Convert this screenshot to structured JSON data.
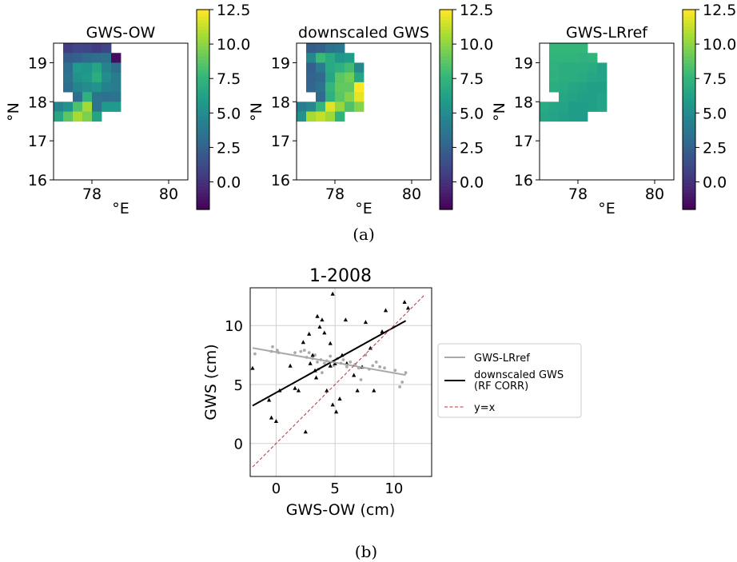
{
  "heatmaps": {
    "xlabel": "°E",
    "ylabel": "°N",
    "x_ticks": [
      78,
      80
    ],
    "y_ticks": [
      16,
      17,
      18,
      19
    ],
    "colorbar_ticks": [
      0.0,
      2.5,
      5.0,
      7.5,
      10.0,
      12.5
    ],
    "colorbar_tick_labels": [
      "0.0",
      "2.5",
      "5.0",
      "7.5",
      "10.0",
      "12.5"
    ]
  },
  "caption_a": "(a)",
  "caption_b": "(b)",
  "chart_data": [
    {
      "type": "heatmap",
      "title": "GWS-OW",
      "x_range": [
        77.0,
        80.5
      ],
      "y_range": [
        16.0,
        19.5
      ],
      "colormap": "viridis",
      "vmin": -2.0,
      "vmax": 12.5,
      "cell_size_deg": 0.25,
      "rows_top_to_bottom": [
        [
          null,
          0.6,
          1.1,
          1.0,
          0.6,
          1.0,
          null,
          null,
          null,
          null,
          null,
          null,
          null,
          null
        ],
        [
          null,
          2.2,
          2.4,
          3.0,
          3.2,
          3.4,
          -1.5,
          null,
          null,
          null,
          null,
          null,
          null,
          null
        ],
        [
          null,
          3.2,
          5.8,
          5.5,
          6.5,
          4.5,
          3.2,
          null,
          null,
          null,
          null,
          null,
          null,
          null
        ],
        [
          null,
          3.6,
          5.4,
          5.8,
          7.0,
          5.0,
          4.0,
          null,
          null,
          null,
          null,
          null,
          null,
          null
        ],
        [
          null,
          3.2,
          4.6,
          5.0,
          5.4,
          4.4,
          4.0,
          null,
          null,
          null,
          null,
          null,
          null,
          null
        ],
        [
          null,
          null,
          3.2,
          7.2,
          3.6,
          3.3,
          3.6,
          null,
          null,
          null,
          null,
          null,
          null,
          null
        ],
        [
          4.6,
          5.4,
          8.4,
          10.5,
          3.5,
          5.8,
          5.8,
          null,
          null,
          null,
          null,
          null,
          null,
          null
        ],
        [
          6.6,
          8.8,
          10.6,
          9.6,
          6.4,
          null,
          null,
          null,
          null,
          null,
          null,
          null,
          null,
          null
        ]
      ]
    },
    {
      "type": "heatmap",
      "title": "downscaled GWS",
      "x_range": [
        77.0,
        80.5
      ],
      "y_range": [
        16.0,
        19.5
      ],
      "colormap": "viridis",
      "vmin": -2.0,
      "vmax": 12.5,
      "cell_size_deg": 0.25,
      "rows_top_to_bottom": [
        [
          null,
          2.2,
          2.5,
          3.4,
          3.8,
          null,
          null,
          null,
          null,
          null,
          null,
          null,
          null,
          null
        ],
        [
          null,
          4.8,
          7.8,
          6.8,
          5.6,
          6.0,
          null,
          null,
          null,
          null,
          null,
          null,
          null,
          null
        ],
        [
          null,
          2.4,
          4.0,
          6.8,
          7.2,
          8.0,
          4.8,
          null,
          null,
          null,
          null,
          null,
          null,
          null
        ],
        [
          null,
          2.6,
          3.0,
          6.6,
          8.8,
          9.4,
          6.6,
          null,
          null,
          null,
          null,
          null,
          null,
          null
        ],
        [
          null,
          2.8,
          3.6,
          7.6,
          9.0,
          9.0,
          12.5,
          null,
          null,
          null,
          null,
          null,
          null,
          null
        ],
        [
          null,
          null,
          3.0,
          7.2,
          8.8,
          9.8,
          12.0,
          null,
          null,
          null,
          null,
          null,
          null,
          null
        ],
        [
          4.2,
          4.8,
          7.6,
          11.8,
          10.2,
          8.4,
          9.8,
          null,
          null,
          null,
          null,
          null,
          null,
          null
        ],
        [
          5.4,
          10.6,
          11.2,
          10.4,
          7.4,
          null,
          null,
          null,
          null,
          null,
          null,
          null,
          null,
          null
        ]
      ]
    },
    {
      "type": "heatmap",
      "title": "GWS-LRref",
      "x_range": [
        77.0,
        80.5
      ],
      "y_range": [
        16.0,
        19.5
      ],
      "colormap": "viridis",
      "vmin": -2.0,
      "vmax": 12.5,
      "cell_size_deg": 0.25,
      "rows_top_to_bottom": [
        [
          null,
          7.6,
          7.6,
          7.6,
          7.6,
          null,
          null,
          null,
          null,
          null,
          null,
          null,
          null,
          null
        ],
        [
          null,
          7.4,
          7.4,
          7.4,
          7.2,
          7.4,
          null,
          null,
          null,
          null,
          null,
          null,
          null,
          null
        ],
        [
          null,
          7.2,
          7.0,
          7.0,
          7.0,
          6.8,
          6.4,
          null,
          null,
          null,
          null,
          null,
          null,
          null
        ],
        [
          null,
          7.2,
          7.0,
          7.0,
          6.8,
          6.6,
          6.4,
          null,
          null,
          null,
          null,
          null,
          null,
          null
        ],
        [
          null,
          7.0,
          6.8,
          6.6,
          6.4,
          6.2,
          6.2,
          null,
          null,
          null,
          null,
          null,
          null,
          null
        ],
        [
          null,
          null,
          6.6,
          6.4,
          6.2,
          6.2,
          6.4,
          null,
          null,
          null,
          null,
          null,
          null,
          null
        ],
        [
          6.8,
          6.6,
          6.4,
          6.0,
          6.0,
          6.2,
          6.4,
          null,
          null,
          null,
          null,
          null,
          null,
          null
        ],
        [
          6.6,
          6.4,
          6.2,
          6.0,
          6.0,
          null,
          null,
          null,
          null,
          null,
          null,
          null,
          null,
          null
        ]
      ]
    },
    {
      "type": "scatter",
      "title": "1-2008",
      "xlabel": "GWS-OW (cm)",
      "ylabel": "GWS (cm)",
      "xlim": [
        -2.2,
        13.2
      ],
      "ylim": [
        -2.8,
        13.2
      ],
      "x_ticks": [
        0,
        5,
        10
      ],
      "y_ticks": [
        0,
        5,
        10
      ],
      "grid": true,
      "legend_position": "right",
      "legend": [
        "GWS-LRref",
        "downscaled GWS\n(RF CORR)",
        "y=x"
      ],
      "series": [
        {
          "name": "GWS-LRref",
          "marker": "circle",
          "color": "#aaaaaa",
          "points": [
            [
              -1.8,
              7.6
            ],
            [
              -0.4,
              7.8
            ],
            [
              -0.3,
              8.2
            ],
            [
              0.1,
              7.9
            ],
            [
              0.2,
              7.7
            ],
            [
              1.6,
              7.7
            ],
            [
              2.1,
              7.8
            ],
            [
              2.4,
              7.9
            ],
            [
              2.6,
              7.3
            ],
            [
              2.8,
              7.7
            ],
            [
              3.1,
              7.2
            ],
            [
              3.3,
              7.5
            ],
            [
              3.5,
              6.9
            ],
            [
              3.8,
              7.1
            ],
            [
              4.1,
              6.8
            ],
            [
              4.3,
              7.0
            ],
            [
              4.6,
              7.4
            ],
            [
              4.9,
              6.6
            ],
            [
              5.2,
              7.2
            ],
            [
              5.5,
              6.8
            ],
            [
              5.7,
              7.1
            ],
            [
              6.0,
              6.5
            ],
            [
              6.3,
              6.9
            ],
            [
              6.7,
              6.7
            ],
            [
              7.0,
              6.4
            ],
            [
              7.2,
              5.4
            ],
            [
              7.6,
              7.5
            ],
            [
              7.9,
              6.3
            ],
            [
              8.2,
              6.6
            ],
            [
              8.5,
              6.9
            ],
            [
              8.8,
              6.5
            ],
            [
              9.2,
              6.4
            ],
            [
              10.1,
              6.2
            ],
            [
              10.5,
              4.8
            ],
            [
              10.7,
              5.2
            ],
            [
              11.0,
              6.0
            ],
            [
              3.9,
              6.0
            ],
            [
              3.6,
              6.3
            ]
          ]
        },
        {
          "name": "downscaled GWS\n(RF CORR)",
          "marker": "triangle",
          "color": "#000000",
          "points": [
            [
              -2.0,
              6.4
            ],
            [
              -0.6,
              3.7
            ],
            [
              -0.4,
              2.2
            ],
            [
              0.0,
              1.9
            ],
            [
              0.3,
              4.5
            ],
            [
              1.2,
              6.6
            ],
            [
              1.6,
              4.7
            ],
            [
              1.9,
              4.5
            ],
            [
              2.3,
              8.6
            ],
            [
              2.5,
              1.0
            ],
            [
              2.8,
              9.3
            ],
            [
              2.9,
              6.8
            ],
            [
              3.1,
              7.5
            ],
            [
              3.3,
              6.2
            ],
            [
              3.4,
              5.6
            ],
            [
              3.5,
              10.8
            ],
            [
              3.7,
              9.9
            ],
            [
              3.9,
              10.5
            ],
            [
              4.1,
              9.4
            ],
            [
              4.3,
              4.5
            ],
            [
              4.6,
              8.5
            ],
            [
              4.8,
              3.3
            ],
            [
              4.6,
              6.6
            ],
            [
              4.8,
              12.7
            ],
            [
              5.0,
              6.8
            ],
            [
              5.1,
              2.7
            ],
            [
              5.4,
              3.8
            ],
            [
              5.6,
              7.5
            ],
            [
              5.9,
              10.5
            ],
            [
              6.0,
              6.8
            ],
            [
              6.6,
              5.8
            ],
            [
              6.9,
              4.5
            ],
            [
              7.3,
              6.5
            ],
            [
              7.6,
              10.3
            ],
            [
              8.0,
              8.1
            ],
            [
              8.3,
              4.5
            ],
            [
              9.0,
              9.5
            ],
            [
              9.3,
              11.3
            ],
            [
              10.9,
              12.0
            ],
            [
              11.2,
              11.5
            ]
          ]
        },
        {
          "name": "downscaled GWS\n(RF CORR)",
          "mark": "fit line",
          "color": "#000000",
          "x": [
            -2.0,
            11.0
          ],
          "y": [
            3.2,
            10.4
          ]
        },
        {
          "name": "GWS-LRref",
          "mark": "fit line",
          "color": "#aaaaaa",
          "x": [
            -2.0,
            11.0
          ],
          "y": [
            8.1,
            5.8
          ]
        },
        {
          "name": "y=x",
          "mark": "dashed line",
          "color": "#d62728",
          "x": [
            -2.0,
            12.6
          ],
          "y": [
            -2.0,
            12.6
          ]
        }
      ]
    }
  ]
}
